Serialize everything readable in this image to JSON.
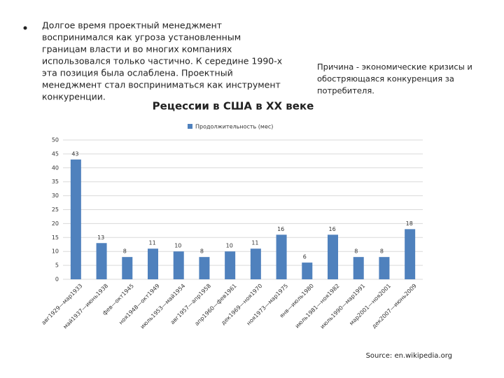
{
  "bullet_text": [
    "Долгое время проектный менеджмент",
    "воспринимался как угроза установленным",
    "границам власти и во многих компаниях",
    "использовался только частично. К середине 1990-х",
    "эта позиция была ослаблена. Проектный",
    "менеджмент стал восприниматься как инструмент",
    "конкуренции."
  ],
  "side_text": [
    "Причина - экономические кризисы и",
    "обостряющаяся конкуренция за",
    "потребителя."
  ],
  "chart_data": {
    "type": "bar",
    "title": "Рецессии в США в XX веке",
    "categories": [
      "авг1929—мар1933",
      "май1937—июнь1938",
      "фев—окт1945",
      "ноя1948—окт1949",
      "июль1953—май1954",
      "авг1957—апр1958",
      "апр1960—фев1961",
      "дек1969—ноя1970",
      "ноя1973—мар1975",
      "янв—июль1980",
      "июль1981—ноя1982",
      "июль1990—мар1991",
      "мар2001—ноя2001",
      "дек2007—июнь2009"
    ],
    "series": [
      {
        "name": "Продолжительность (мес)",
        "color": "#4f81bd",
        "values": [
          43,
          13,
          8,
          11,
          10,
          8,
          10,
          11,
          16,
          6,
          16,
          8,
          8,
          18
        ]
      }
    ],
    "ylim": [
      0,
      50
    ],
    "yticks": [
      0,
      5,
      10,
      15,
      20,
      25,
      30,
      35,
      40,
      45,
      50
    ],
    "grid": true,
    "legend": "top"
  },
  "source": "Source: en.wikipedia.org"
}
